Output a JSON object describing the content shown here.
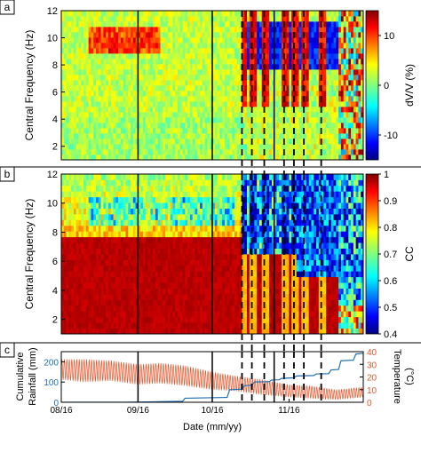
{
  "figure": {
    "panels": [
      {
        "letter": "a"
      },
      {
        "letter": "b"
      },
      {
        "letter": "c"
      }
    ]
  },
  "chart_data": [
    {
      "type": "heatmap",
      "panel": "a",
      "ylabel": "Central Frequency (Hz)",
      "yticks": [
        2,
        4,
        6,
        8,
        10,
        12
      ],
      "ylim": [
        1,
        12
      ],
      "colorbar": {
        "label": "dV/V (%)",
        "ticks": [
          -10,
          0,
          10
        ],
        "range": [
          -15,
          15
        ],
        "colormap": "jet"
      },
      "solid_event_lines": [
        "2016-09-16",
        "2016-10-16",
        "2016-11-10"
      ],
      "dashed_event_lines": [
        "2016-10-28",
        "2016-11-01",
        "2016-11-06",
        "2016-11-14",
        "2016-11-18",
        "2016-11-22",
        "2016-11-29"
      ],
      "description_of_values": "dV/V near 0 to +5% before late October at most frequencies, with a yellow (+8%) band near 9.5-10.5 Hz in late August and September; after late October strong negative values (-8 to -12%) in the 8-11 Hz band and late November, positive streaks near event lines"
    },
    {
      "type": "heatmap",
      "panel": "b",
      "ylabel": "Central Frequency (Hz)",
      "yticks": [
        2,
        4,
        6,
        8,
        10,
        12
      ],
      "ylim": [
        1,
        12
      ],
      "colorbar": {
        "label": "CC",
        "ticks": [
          0.4,
          0.5,
          0.6,
          0.7,
          0.8,
          0.9,
          1
        ],
        "range": [
          0.4,
          1.0
        ],
        "colormap": "jet"
      },
      "description_of_values": "CC near 0.95-1.0 below ~8 Hz for most of the record, decreasing to 0.8-0.9 above 8 Hz; coherence drops to 0.4-0.6 above ~6 Hz after late October and across all frequencies in late November"
    },
    {
      "type": "line",
      "panel": "c",
      "xlabel": "Date (mm/yy)",
      "xticks": [
        "08/16",
        "09/16",
        "10/16",
        "11/16"
      ],
      "xlim": [
        "2016-08-16",
        "2016-12-16"
      ],
      "y_left": {
        "label": "Cumulative Rainfall (mm)",
        "ticks": [
          0,
          100,
          200
        ],
        "lim": [
          0,
          250
        ],
        "color": "#1f6fb5"
      },
      "y_right": {
        "label": "Temperature (°C)",
        "ticks": [
          0,
          10,
          20,
          30,
          40
        ],
        "lim": [
          0,
          40
        ],
        "color": "#e4572e"
      },
      "series": [
        {
          "name": "Cumulative Rainfall",
          "axis": "left",
          "x": [
            "2016-08-16",
            "2016-09-10",
            "2016-09-20",
            "2016-10-04",
            "2016-10-05",
            "2016-10-22",
            "2016-10-23",
            "2016-10-28",
            "2016-10-29",
            "2016-11-01",
            "2016-11-02",
            "2016-11-08",
            "2016-11-09",
            "2016-11-12",
            "2016-11-13",
            "2016-11-18",
            "2016-11-19",
            "2016-11-26",
            "2016-11-27",
            "2016-12-02",
            "2016-12-03",
            "2016-12-06",
            "2016-12-07",
            "2016-12-12",
            "2016-12-13",
            "2016-12-16"
          ],
          "values": [
            0,
            0,
            2,
            5,
            20,
            24,
            62,
            65,
            82,
            84,
            100,
            102,
            110,
            111,
            118,
            121,
            130,
            132,
            140,
            141,
            160,
            162,
            205,
            208,
            238,
            242
          ]
        },
        {
          "name": "Temperature",
          "axis": "right",
          "sampling": "hourly, diurnal cycle",
          "daily_mean_x": [
            "2016-08-16",
            "2016-08-25",
            "2016-09-05",
            "2016-09-16",
            "2016-09-25",
            "2016-10-05",
            "2016-10-16",
            "2016-10-25",
            "2016-11-05",
            "2016-11-16",
            "2016-11-25",
            "2016-12-05",
            "2016-12-16"
          ],
          "daily_mean": [
            26,
            25,
            25,
            22,
            23,
            21,
            17,
            15,
            12,
            9,
            8,
            6,
            8
          ],
          "daily_amplitude": [
            8,
            9,
            8,
            8,
            8,
            8,
            7,
            6,
            6,
            5,
            5,
            4,
            4
          ]
        }
      ]
    }
  ]
}
